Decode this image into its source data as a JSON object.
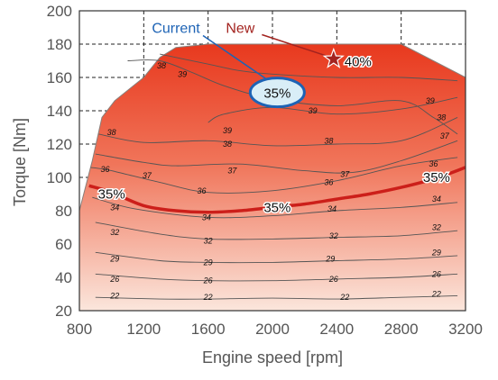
{
  "chart_data": {
    "type": "contour",
    "xlabel": "Engine speed [rpm]",
    "ylabel": "Torque [Nm]",
    "xlim": [
      800,
      3200
    ],
    "ylim": [
      20,
      200
    ],
    "x_ticks": [
      "800",
      "1200",
      "1600",
      "2000",
      "2400",
      "2800",
      "3200"
    ],
    "y_ticks": [
      "20",
      "40",
      "60",
      "80",
      "100",
      "120",
      "140",
      "160",
      "180",
      "200"
    ],
    "grid": "dashed",
    "colors": {
      "high": "#e8391e",
      "low": "#fbe6dc",
      "contour": "#555555",
      "highlight": "#cc1f1a",
      "current_fill": "#d9eef7",
      "current_stroke": "#1d63b5",
      "current_text": "#1d63b5",
      "new_text": "#a3231f"
    },
    "max_torque_curve": [
      [
        800,
        80
      ],
      [
        880,
        110
      ],
      [
        940,
        136
      ],
      [
        1020,
        146
      ],
      [
        1200,
        160
      ],
      [
        1300,
        172
      ],
      [
        1400,
        178
      ],
      [
        1600,
        180
      ],
      [
        2000,
        180
      ],
      [
        2400,
        180
      ],
      [
        2800,
        180
      ],
      [
        3000,
        170
      ],
      [
        3200,
        160
      ]
    ],
    "contours": [
      {
        "level": 22,
        "points": [
          [
            900,
            28
          ],
          [
            1300,
            27
          ],
          [
            1600,
            27
          ],
          [
            2000,
            27.5
          ],
          [
            2400,
            27
          ],
          [
            2800,
            28
          ],
          [
            3150,
            29
          ]
        ]
      },
      {
        "level": 26,
        "points": [
          [
            900,
            42
          ],
          [
            1300,
            39
          ],
          [
            1600,
            38
          ],
          [
            2000,
            38
          ],
          [
            2400,
            39
          ],
          [
            2800,
            40
          ],
          [
            3150,
            42
          ]
        ]
      },
      {
        "level": 29,
        "points": [
          [
            900,
            55
          ],
          [
            1300,
            50
          ],
          [
            1600,
            49
          ],
          [
            2000,
            49
          ],
          [
            2400,
            50
          ],
          [
            2800,
            51
          ],
          [
            3150,
            53
          ]
        ]
      },
      {
        "level": 32,
        "points": [
          [
            900,
            73
          ],
          [
            1300,
            66
          ],
          [
            1600,
            63
          ],
          [
            2000,
            63
          ],
          [
            2400,
            64
          ],
          [
            2800,
            65
          ],
          [
            3150,
            68
          ]
        ]
      },
      {
        "level": 34,
        "points": [
          [
            880,
            88
          ],
          [
            1150,
            81
          ],
          [
            1600,
            76
          ],
          [
            2000,
            77
          ],
          [
            2400,
            80
          ],
          [
            2800,
            82
          ],
          [
            3150,
            85
          ]
        ]
      },
      {
        "level": 36,
        "points": [
          [
            870,
            106
          ],
          [
            1000,
            104
          ],
          [
            1300,
            97
          ],
          [
            1600,
            91
          ],
          [
            2000,
            92
          ],
          [
            2400,
            98
          ],
          [
            2800,
            107
          ],
          [
            3150,
            112
          ]
        ]
      },
      {
        "level": 37,
        "points": [
          [
            900,
            114
          ],
          [
            1200,
            109
          ],
          [
            1400,
            107
          ],
          [
            1800,
            108
          ],
          [
            2200,
            104
          ],
          [
            2500,
            103
          ],
          [
            2800,
            110
          ],
          [
            3150,
            122
          ]
        ]
      },
      {
        "level": 38,
        "points": [
          [
            920,
            126
          ],
          [
            1200,
            121
          ],
          [
            1600,
            122
          ],
          [
            2000,
            119
          ],
          [
            2400,
            120
          ],
          [
            2800,
            122
          ],
          [
            3150,
            136
          ]
        ]
      },
      {
        "level": 39,
        "points": [
          [
            1600,
            133
          ],
          [
            1700,
            138
          ],
          [
            2000,
            142
          ],
          [
            2400,
            138
          ],
          [
            2800,
            141
          ],
          [
            3150,
            148
          ]
        ]
      },
      {
        "level": 38,
        "points": [
          [
            1100,
            170
          ],
          [
            1300,
            170
          ],
          [
            1500,
            163
          ],
          [
            1700,
            155
          ],
          [
            2000,
            147
          ],
          [
            2400,
            143
          ],
          [
            2800,
            146
          ],
          [
            3000,
            136
          ],
          [
            3150,
            126
          ]
        ]
      },
      {
        "level": 39,
        "points": [
          [
            1300,
            174
          ],
          [
            1600,
            168
          ],
          [
            1800,
            164
          ],
          [
            2000,
            162
          ],
          [
            2400,
            160
          ],
          [
            2800,
            160
          ],
          [
            3150,
            158
          ]
        ]
      }
    ],
    "contour_labels": [
      {
        "text": "22",
        "x": 1020,
        "y": 29
      },
      {
        "text": "22",
        "x": 1600,
        "y": 28
      },
      {
        "text": "22",
        "x": 2450,
        "y": 28
      },
      {
        "text": "22",
        "x": 3020,
        "y": 30
      },
      {
        "text": "26",
        "x": 1020,
        "y": 39
      },
      {
        "text": "26",
        "x": 1600,
        "y": 38
      },
      {
        "text": "26",
        "x": 2380,
        "y": 39
      },
      {
        "text": "26",
        "x": 3020,
        "y": 42
      },
      {
        "text": "29",
        "x": 1020,
        "y": 51
      },
      {
        "text": "29",
        "x": 1600,
        "y": 49
      },
      {
        "text": "29",
        "x": 2360,
        "y": 51
      },
      {
        "text": "29",
        "x": 3020,
        "y": 55
      },
      {
        "text": "32",
        "x": 1020,
        "y": 67
      },
      {
        "text": "32",
        "x": 1600,
        "y": 62
      },
      {
        "text": "32",
        "x": 2380,
        "y": 65
      },
      {
        "text": "32",
        "x": 3020,
        "y": 70
      },
      {
        "text": "34",
        "x": 1020,
        "y": 82
      },
      {
        "text": "34",
        "x": 1590,
        "y": 76
      },
      {
        "text": "34",
        "x": 2370,
        "y": 81
      },
      {
        "text": "34",
        "x": 3020,
        "y": 87
      },
      {
        "text": "36",
        "x": 960,
        "y": 105
      },
      {
        "text": "36",
        "x": 1560,
        "y": 92
      },
      {
        "text": "36",
        "x": 2350,
        "y": 97
      },
      {
        "text": "36",
        "x": 3000,
        "y": 108
      },
      {
        "text": "37",
        "x": 1220,
        "y": 101
      },
      {
        "text": "37",
        "x": 1750,
        "y": 104
      },
      {
        "text": "37",
        "x": 2450,
        "y": 102
      },
      {
        "text": "37",
        "x": 3070,
        "y": 125
      },
      {
        "text": "38",
        "x": 1000,
        "y": 127
      },
      {
        "text": "38",
        "x": 1720,
        "y": 120
      },
      {
        "text": "38",
        "x": 2350,
        "y": 122
      },
      {
        "text": "38",
        "x": 3050,
        "y": 136
      },
      {
        "text": "39",
        "x": 1720,
        "y": 128
      },
      {
        "text": "39",
        "x": 2250,
        "y": 140
      },
      {
        "text": "39",
        "x": 2980,
        "y": 146
      },
      {
        "text": "38",
        "x": 1310,
        "y": 167
      },
      {
        "text": "39",
        "x": 1440,
        "y": 162
      }
    ],
    "highlight_contour": {
      "level": 35,
      "points": [
        [
          860,
          95
        ],
        [
          1000,
          91
        ],
        [
          1200,
          83
        ],
        [
          1400,
          80
        ],
        [
          1600,
          79
        ],
        [
          1800,
          80
        ],
        [
          2000,
          82
        ],
        [
          2200,
          84
        ],
        [
          2400,
          87
        ],
        [
          2600,
          90
        ],
        [
          2800,
          94
        ],
        [
          3000,
          99
        ],
        [
          3200,
          106
        ]
      ]
    },
    "highlight_labels": [
      {
        "text": "35%",
        "x": 1000,
        "y": 90
      },
      {
        "text": "35%",
        "x": 2030,
        "y": 82
      },
      {
        "text": "35%",
        "x": 3020,
        "y": 100
      }
    ],
    "annotations": [
      {
        "label": "Current",
        "target_label": "35%",
        "target_x": 2030,
        "target_y": 151,
        "label_x": 1400,
        "label_y": 190
      },
      {
        "label": "New",
        "target_label": "40%",
        "target_x": 2380,
        "target_y": 171,
        "label_x": 1800,
        "label_y": 190
      }
    ]
  }
}
